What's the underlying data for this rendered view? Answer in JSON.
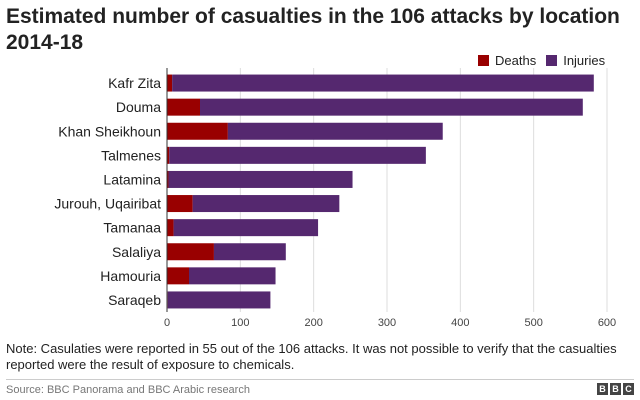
{
  "chart_data": {
    "type": "bar",
    "orientation": "horizontal",
    "stacked": true,
    "title": "Estimated number of casualties in the 106 attacks by location 2014-18",
    "categories": [
      "Kafr Zita",
      "Douma",
      "Khan Sheikhoun",
      "Talmenes",
      "Latamina",
      "Jurouh, Uqairibat",
      "Tamanaa",
      "Salaliya",
      "Hamouria",
      "Saraqeb"
    ],
    "series": [
      {
        "name": "Deaths",
        "color": "#990000",
        "values": [
          7,
          45,
          83,
          3,
          2,
          35,
          9,
          64,
          30,
          1
        ]
      },
      {
        "name": "Injuries",
        "color": "#55286f",
        "values": [
          575,
          522,
          293,
          350,
          251,
          200,
          197,
          98,
          118,
          140
        ]
      }
    ],
    "xlim": [
      0,
      600
    ],
    "xticks": [
      0,
      100,
      200,
      300,
      400,
      500,
      600
    ],
    "grid": true,
    "legend": "top-right"
  },
  "footer": {
    "note": "Note: Casulaties were reported in 55 out of the 106 attacks. It was not possible to verify that the casualties reported were the result of exposure to chemicals.",
    "source": "Source: BBC Panorama and BBC Arabic research",
    "logo_letters": [
      "B",
      "B",
      "C"
    ]
  }
}
